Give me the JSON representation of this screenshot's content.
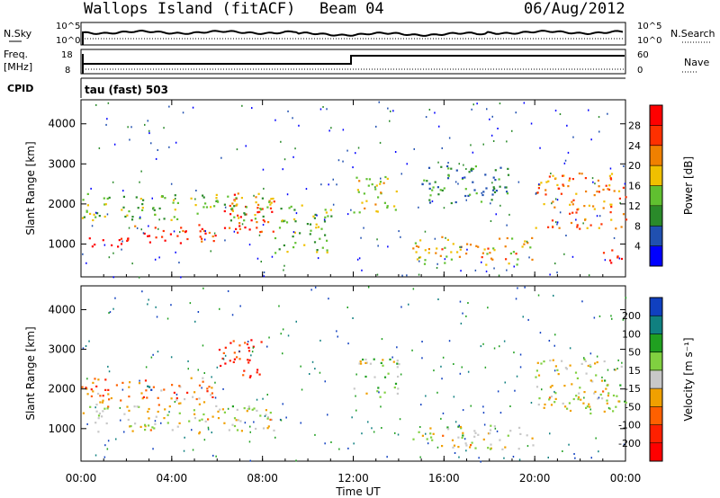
{
  "header": {
    "title": "Wallops Island (fitACF)",
    "beam": "Beam 04",
    "date": "06/Aug/2012"
  },
  "status": {
    "nsky_label": "N.Sky",
    "nsearch_label": "N.Search",
    "freq_label_1": "Freq.",
    "freq_label_2": "[MHz]",
    "nave_label": "Nave",
    "cpid_label": "CPID",
    "cpid_value": "tau (fast) 503",
    "noise_ticks": [
      "10^5",
      "10^0"
    ],
    "freq_ticks": [
      "18",
      "8"
    ],
    "nave_ticks": [
      "60",
      "0"
    ]
  },
  "chart_data": [
    {
      "type": "heatmap",
      "name": "power",
      "ylabel": "Slant Range [km]",
      "xlabel": "Time UT",
      "xlim_hours": [
        0,
        24
      ],
      "ylim": [
        180,
        4600
      ],
      "x_ticks": [
        "00:00",
        "04:00",
        "08:00",
        "12:00",
        "16:00",
        "20:00",
        "00:00"
      ],
      "y_ticks": [
        1000,
        2000,
        3000,
        4000
      ],
      "colorbar": {
        "label": "Power [dB]",
        "ticks": [
          4,
          8,
          12,
          16,
          20,
          24,
          28
        ],
        "colors": [
          "#0000ff",
          "#2050b0",
          "#2a8a2a",
          "#60c030",
          "#f0c000",
          "#f08000",
          "#ff3000",
          "#ff0000"
        ]
      },
      "bands": [
        {
          "t0": 0.0,
          "t1": 2.0,
          "r0": 900,
          "r1": 1200,
          "level": 0.95
        },
        {
          "t0": 2.0,
          "t1": 6.0,
          "r0": 1000,
          "r1": 1500,
          "level": 0.85
        },
        {
          "t0": 6.0,
          "t1": 8.5,
          "r0": 1300,
          "r1": 2300,
          "level": 0.8
        },
        {
          "t0": 0.0,
          "t1": 8.5,
          "r0": 1600,
          "r1": 2300,
          "level": 0.45
        },
        {
          "t0": 8.5,
          "t1": 11.0,
          "r0": 800,
          "r1": 2000,
          "level": 0.4
        },
        {
          "t0": 12.0,
          "t1": 14.0,
          "r0": 1800,
          "r1": 2800,
          "level": 0.55
        },
        {
          "t0": 14.5,
          "t1": 20.0,
          "r0": 500,
          "r1": 1200,
          "level": 0.6
        },
        {
          "t0": 15.0,
          "t1": 19.0,
          "r0": 2000,
          "r1": 3000,
          "level": 0.3
        },
        {
          "t0": 20.0,
          "t1": 24.0,
          "r0": 1400,
          "r1": 2800,
          "level": 0.7
        },
        {
          "t0": 23.0,
          "t1": 24.0,
          "r0": 500,
          "r1": 900,
          "level": 0.9
        }
      ]
    },
    {
      "type": "heatmap",
      "name": "velocity",
      "ylabel": "Slant Range [km]",
      "xlabel": "Time UT",
      "xlim_hours": [
        0,
        24
      ],
      "ylim": [
        180,
        4600
      ],
      "x_ticks": [
        "00:00",
        "04:00",
        "08:00",
        "12:00",
        "16:00",
        "20:00",
        "00:00"
      ],
      "y_ticks": [
        1000,
        2000,
        3000,
        4000
      ],
      "colorbar": {
        "label": "Velocity [m s⁻¹]",
        "ticks": [
          200,
          100,
          50,
          15,
          -15,
          -50,
          -100,
          -200
        ],
        "colors": [
          "#1040c0",
          "#108080",
          "#20a020",
          "#80d040",
          "#c8c8c8",
          "#f0a000",
          "#ff6000",
          "#ff2000",
          "#ff0000"
        ]
      },
      "bands": [
        {
          "t0": 0.0,
          "t1": 8.5,
          "r0": 900,
          "r1": 1600,
          "level": 0.5
        },
        {
          "t0": 2.2,
          "t1": 3.2,
          "r0": 1900,
          "r1": 2100,
          "level": 0.05
        },
        {
          "t0": 6.0,
          "t1": 8.0,
          "r0": 2300,
          "r1": 3300,
          "level": 0.85
        },
        {
          "t0": 12.0,
          "t1": 14.0,
          "r0": 1800,
          "r1": 2800,
          "level": 0.45
        },
        {
          "t0": 14.5,
          "t1": 20.0,
          "r0": 500,
          "r1": 1100,
          "level": 0.5
        },
        {
          "t0": 20.0,
          "t1": 24.0,
          "r0": 1400,
          "r1": 2800,
          "level": 0.5
        },
        {
          "t0": 0.0,
          "t1": 6.0,
          "r0": 1600,
          "r1": 2300,
          "level": 0.65
        }
      ]
    }
  ]
}
